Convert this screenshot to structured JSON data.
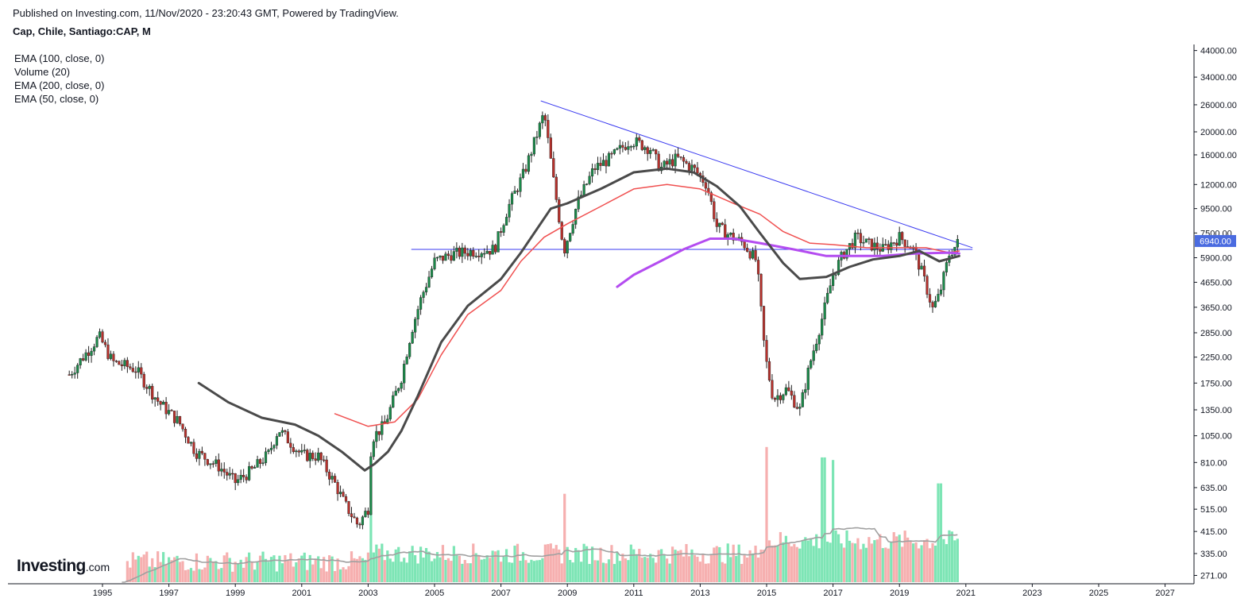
{
  "header": {
    "published": "Published on Investing.com, 11/Nov/2020 - 23:20:43 GMT, Powered by TradingView.",
    "symbol": "Cap, Chile, Santiago:CAP, M"
  },
  "indicators": [
    "EMA (100, close, 0)",
    "Volume (20)",
    "EMA (200, close, 0)",
    "EMA (50, close, 0)"
  ],
  "logo": {
    "main": "Investing",
    "suffix": ".com"
  },
  "chart_data": {
    "type": "candlestick",
    "interval": "M",
    "y_scale": "log",
    "grid": false,
    "price_axis_labels": [
      "44000.00",
      "34000.00",
      "26000.00",
      "20000.00",
      "16000.00",
      "12000.00",
      "9500.00",
      "7500.00",
      "5900.00",
      "4650.00",
      "3650.00",
      "2850.00",
      "2250.00",
      "1750.00",
      "1350.00",
      "1050.00",
      "810.00",
      "635.00",
      "515.00",
      "415.00",
      "335.00",
      "271.00"
    ],
    "time_axis_labels": [
      "1995",
      "1997",
      "1999",
      "2001",
      "2003",
      "2005",
      "2007",
      "2009",
      "2011",
      "2013",
      "2015",
      "2017",
      "2019",
      "2021",
      "2023",
      "2025",
      "2027"
    ],
    "last_price": 6940,
    "last_price_label": "6940.00",
    "colors": {
      "up": "#1b8a4a",
      "down": "#b7312c",
      "wick": "#222222",
      "ema50": "#4a4a4a",
      "ema100": "#f05050",
      "ema200": "#b44cf0",
      "volume_up": "#66e0a8",
      "volume_down": "#f4a1a1",
      "volume_ma": "#a0a0a0",
      "trendline": "#3a3af0",
      "price_badge": "#4a6be0"
    },
    "price_path": [
      [
        1994.0,
        1900
      ],
      [
        1994.9,
        2750
      ],
      [
        1995.3,
        2150
      ],
      [
        1996.0,
        2000
      ],
      [
        1996.7,
        1450
      ],
      [
        1997.3,
        1200
      ],
      [
        1997.8,
        900
      ],
      [
        1998.5,
        780
      ],
      [
        1999.0,
        670
      ],
      [
        1999.5,
        750
      ],
      [
        2000.0,
        880
      ],
      [
        2000.3,
        1120
      ],
      [
        2001.0,
        870
      ],
      [
        2001.5,
        860
      ],
      [
        2002.0,
        660
      ],
      [
        2002.3,
        540
      ],
      [
        2002.7,
        440
      ],
      [
        2003.0,
        520
      ],
      [
        2003.1,
        1020
      ],
      [
        2003.5,
        1170
      ],
      [
        2004.0,
        1850
      ],
      [
        2004.3,
        2900
      ],
      [
        2004.6,
        4000
      ],
      [
        2005.0,
        5700
      ],
      [
        2005.5,
        6100
      ],
      [
        2006.2,
        6300
      ],
      [
        2006.8,
        6400
      ],
      [
        2007.2,
        9500
      ],
      [
        2007.7,
        13500
      ],
      [
        2008.3,
        24000
      ],
      [
        2008.6,
        12000
      ],
      [
        2008.9,
        6300
      ],
      [
        2009.3,
        10000
      ],
      [
        2009.8,
        14000
      ],
      [
        2010.3,
        15500
      ],
      [
        2010.9,
        18500
      ],
      [
        2011.5,
        17000
      ],
      [
        2011.8,
        14000
      ],
      [
        2012.3,
        15500
      ],
      [
        2012.8,
        14000
      ],
      [
        2013.2,
        12000
      ],
      [
        2013.5,
        8000
      ],
      [
        2013.9,
        7300
      ],
      [
        2014.3,
        6800
      ],
      [
        2014.7,
        5700
      ],
      [
        2014.95,
        2300
      ],
      [
        2015.2,
        1500
      ],
      [
        2015.6,
        1650
      ],
      [
        2016.0,
        1350
      ],
      [
        2016.3,
        2100
      ],
      [
        2016.7,
        3400
      ],
      [
        2017.0,
        5000
      ],
      [
        2017.3,
        6100
      ],
      [
        2017.7,
        7200
      ],
      [
        2018.0,
        6800
      ],
      [
        2018.5,
        6400
      ],
      [
        2019.0,
        7200
      ],
      [
        2019.4,
        6500
      ],
      [
        2019.7,
        5000
      ],
      [
        2020.0,
        3600
      ],
      [
        2020.2,
        4100
      ],
      [
        2020.5,
        6100
      ],
      [
        2020.8,
        6940
      ]
    ],
    "ema50": [
      [
        1997.9,
        1750
      ],
      [
        1998.8,
        1450
      ],
      [
        1999.8,
        1250
      ],
      [
        2000.8,
        1170
      ],
      [
        2001.5,
        1050
      ],
      [
        2002.2,
        900
      ],
      [
        2002.9,
        750
      ],
      [
        2003.2,
        800
      ],
      [
        2003.6,
        900
      ],
      [
        2004.0,
        1100
      ],
      [
        2004.5,
        1550
      ],
      [
        2005.2,
        2600
      ],
      [
        2006.0,
        3700
      ],
      [
        2007.0,
        4800
      ],
      [
        2007.6,
        6200
      ],
      [
        2008.5,
        9500
      ],
      [
        2009.0,
        10000
      ],
      [
        2010.0,
        11500
      ],
      [
        2011.0,
        13500
      ],
      [
        2012.0,
        14000
      ],
      [
        2012.8,
        13500
      ],
      [
        2013.5,
        11800
      ],
      [
        2014.2,
        9700
      ],
      [
        2014.8,
        7500
      ],
      [
        2015.5,
        5600
      ],
      [
        2016.0,
        4800
      ],
      [
        2016.8,
        4900
      ],
      [
        2017.5,
        5400
      ],
      [
        2018.2,
        5800
      ],
      [
        2019.0,
        6000
      ],
      [
        2019.6,
        6300
      ],
      [
        2020.2,
        5700
      ],
      [
        2020.8,
        6000
      ]
    ],
    "ema100": [
      [
        2002.0,
        1300
      ],
      [
        2003.0,
        1150
      ],
      [
        2003.8,
        1200
      ],
      [
        2004.5,
        1500
      ],
      [
        2005.2,
        2300
      ],
      [
        2006.0,
        3400
      ],
      [
        2007.0,
        4300
      ],
      [
        2007.6,
        5700
      ],
      [
        2008.3,
        7200
      ],
      [
        2009.0,
        8200
      ],
      [
        2010.0,
        9700
      ],
      [
        2011.0,
        11500
      ],
      [
        2012.0,
        12000
      ],
      [
        2013.0,
        11500
      ],
      [
        2014.0,
        10000
      ],
      [
        2014.8,
        9000
      ],
      [
        2015.5,
        7600
      ],
      [
        2016.3,
        6800
      ],
      [
        2017.0,
        6700
      ],
      [
        2018.0,
        6500
      ],
      [
        2019.0,
        6500
      ],
      [
        2019.8,
        6500
      ],
      [
        2020.5,
        6200
      ],
      [
        2020.8,
        6300
      ]
    ],
    "ema200": [
      [
        2010.5,
        4450
      ],
      [
        2011.0,
        5000
      ],
      [
        2011.8,
        5700
      ],
      [
        2012.5,
        6400
      ],
      [
        2013.3,
        7100
      ],
      [
        2014.0,
        7100
      ],
      [
        2014.8,
        6800
      ],
      [
        2015.8,
        6400
      ],
      [
        2016.8,
        6000
      ],
      [
        2017.5,
        6000
      ],
      [
        2018.5,
        6000
      ],
      [
        2019.5,
        6150
      ],
      [
        2020.5,
        6200
      ],
      [
        2020.8,
        6150
      ]
    ],
    "trendline_descending": [
      [
        2008.2,
        27000
      ],
      [
        2021.2,
        6500
      ]
    ],
    "trendline_horizontal": {
      "y": 6400,
      "x": [
        2004.3,
        2021.2
      ]
    },
    "volume_peaks": [
      {
        "x": 2003.1,
        "v": 0.27
      },
      {
        "x": 2008.9,
        "v": 0.34
      },
      {
        "x": 2015.0,
        "v": 0.52
      },
      {
        "x": 2016.7,
        "v": 0.48
      },
      {
        "x": 2017.0,
        "v": 0.47
      },
      {
        "x": 2020.2,
        "v": 0.38
      }
    ]
  }
}
